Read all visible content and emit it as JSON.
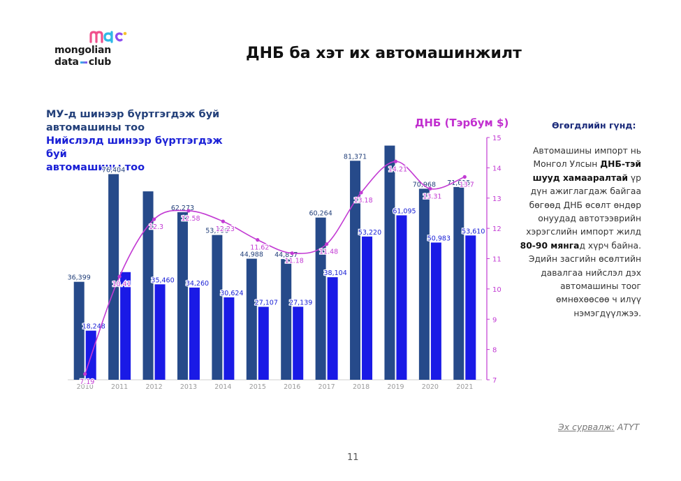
{
  "logo": {
    "line1": "mongolian",
    "line2_a": "data",
    "line2_b": "club",
    "mark": "mdc"
  },
  "title": "ДНБ ба хэт их автомашинжилт",
  "legend": {
    "series1_line1": "МУ-д шинээр бүртгэгдэж буй",
    "series1_line2": "автомашины тоо",
    "series2_line1": "Нийслэлд шинээр бүртгэгдэж буй",
    "series2_line2": "автомашины тоо",
    "gdp": "ДНБ (Тэрбум $)"
  },
  "side": {
    "heading": "Өгөгдлийн гүнд:",
    "p1": "Автомашины импорт нь Монгол Улсын ",
    "p1_bold": "ДНБ-тэй шууд хамааралтай",
    "p2": " үр дүн ажиглагдаж байгаа бөгөөд ДНБ өсөлт өндөр онуудад автотээврийн хэрэгслийн импорт жилд ",
    "p2_bold": "80-90 мянга",
    "p3": "д хүрч байна. Эдийн засгийн өсөлтийн давалгаа нийслэл дэх автомашины тоог өмнөхөөсөө ч илүү нэмэгдүүлжээ."
  },
  "source": {
    "label": "Эх сурвалж:",
    "value": "АТҮТ"
  },
  "page_number": "11",
  "colors": {
    "series1": "#264a8a",
    "series2": "#1a1ae6",
    "gdp": "#c23ad3",
    "axis_right": "#c23ad3"
  },
  "chart_data": {
    "type": "bar",
    "categories": [
      "2010",
      "2011",
      "2012",
      "2013",
      "2014",
      "2015",
      "2016",
      "2017",
      "2018",
      "2019",
      "2020",
      "2021"
    ],
    "series": [
      {
        "name": "МУ-д шинээр бүртгэгдэж буй автомашины тоо",
        "values": [
          36399,
          76404,
          70000,
          62273,
          53790,
          44988,
          44837,
          60264,
          81371,
          87000,
          70968,
          71615
        ],
        "labels": [
          "36,399",
          "76,404",
          "",
          "62,273",
          "53,790",
          "44,988",
          "44,837",
          "60,264",
          "81,371",
          "",
          "70,968",
          "71,615"
        ]
      },
      {
        "name": "Нийслэлд шинээр бүртгэгдэж буй автомашины тоо",
        "values": [
          18248,
          40000,
          35460,
          34260,
          30624,
          27107,
          27139,
          38104,
          53220,
          61095,
          50983,
          53610
        ],
        "labels": [
          "18,248",
          "",
          "35,460",
          "34,260",
          "30,624",
          "27,107",
          "27,139",
          "38,104",
          "53,220",
          "61,095",
          "50,983",
          "53,610"
        ]
      }
    ],
    "line": {
      "name": "ДНБ (Тэрбум $)",
      "values": [
        7.19,
        10.41,
        12.3,
        12.58,
        12.23,
        11.62,
        11.18,
        11.48,
        13.18,
        14.21,
        13.31,
        13.7
      ],
      "labels": [
        "7.19",
        "10.41",
        "12.3",
        "12.58",
        "12.23",
        "11.62",
        "11.18",
        "11.48",
        "13.18",
        "14.21",
        "13.31",
        "13.7"
      ]
    },
    "y_left_range": [
      0,
      90000
    ],
    "y_right_range": [
      7,
      15
    ],
    "y_right_ticks": [
      "7",
      "8",
      "9",
      "10",
      "11",
      "12",
      "13",
      "14",
      "15"
    ]
  }
}
